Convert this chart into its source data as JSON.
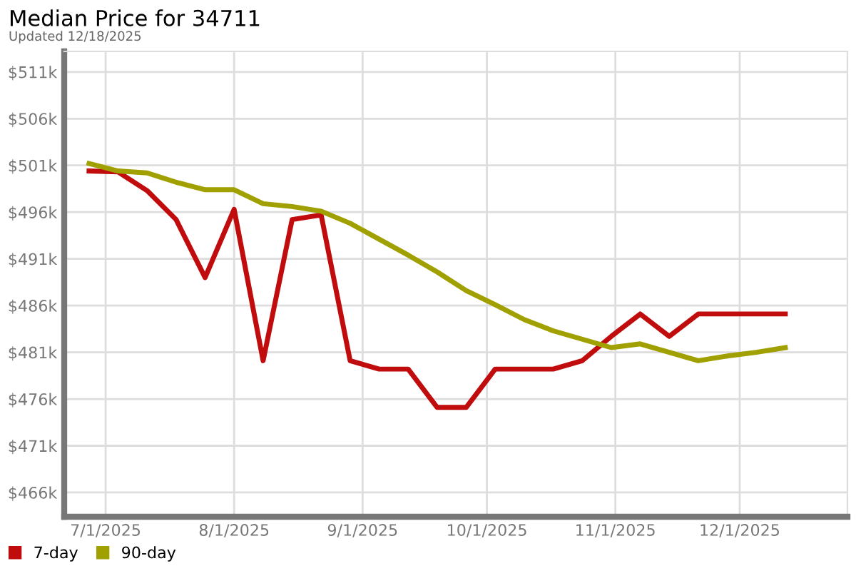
{
  "chart_data": {
    "type": "line",
    "title": "Median Price for 34711",
    "subtitle": "Updated 12/18/2025",
    "x": [
      "2025-06-27",
      "2025-07-04",
      "2025-07-11",
      "2025-07-18",
      "2025-07-25",
      "2025-08-01",
      "2025-08-08",
      "2025-08-15",
      "2025-08-22",
      "2025-08-29",
      "2025-09-05",
      "2025-09-12",
      "2025-09-19",
      "2025-09-26",
      "2025-10-03",
      "2025-10-10",
      "2025-10-17",
      "2025-10-24",
      "2025-10-31",
      "2025-11-07",
      "2025-11-14",
      "2025-11-21",
      "2025-11-28",
      "2025-12-05",
      "2025-12-12"
    ],
    "series": [
      {
        "name": "7-day",
        "color": "#c00c0c",
        "values": [
          500.4,
          500.3,
          498.3,
          495.2,
          489.0,
          496.3,
          480.1,
          495.2,
          495.7,
          480.1,
          479.2,
          479.2,
          475.1,
          475.1,
          479.2,
          479.2,
          479.2,
          480.1,
          482.7,
          485.1,
          482.7,
          485.1,
          485.1,
          485.1,
          485.1
        ]
      },
      {
        "name": "90-day",
        "color": "#a0a000",
        "values": [
          501.2,
          500.4,
          500.2,
          499.2,
          498.4,
          498.4,
          496.9,
          496.6,
          496.1,
          494.8,
          493.1,
          491.4,
          489.6,
          487.6,
          486.1,
          484.5,
          483.3,
          482.4,
          481.5,
          481.9,
          481.0,
          480.1,
          480.6,
          481.0,
          481.5
        ]
      }
    ],
    "xlim": [
      "2025-06-21",
      "2025-12-27"
    ],
    "xticks": [
      {
        "value": "2025-07-01",
        "label": "7/1/2025"
      },
      {
        "value": "2025-08-01",
        "label": "8/1/2025"
      },
      {
        "value": "2025-09-01",
        "label": "9/1/2025"
      },
      {
        "value": "2025-10-01",
        "label": "10/1/2025"
      },
      {
        "value": "2025-11-01",
        "label": "11/1/2025"
      },
      {
        "value": "2025-12-01",
        "label": "12/1/2025"
      }
    ],
    "ylim": [
      463.4,
      513.2
    ],
    "yticks": [
      {
        "value": 466,
        "label": "$466k"
      },
      {
        "value": 471,
        "label": "$471k"
      },
      {
        "value": 476,
        "label": "$476k"
      },
      {
        "value": 481,
        "label": "$481k"
      },
      {
        "value": 486,
        "label": "$486k"
      },
      {
        "value": 491,
        "label": "$491k"
      },
      {
        "value": 496,
        "label": "$496k"
      },
      {
        "value": 501,
        "label": "$501k"
      },
      {
        "value": 506,
        "label": "$506k"
      },
      {
        "value": 511,
        "label": "$511k"
      }
    ],
    "grid": true,
    "legend": "bottom left",
    "marker": "none",
    "line_style": "solid"
  }
}
